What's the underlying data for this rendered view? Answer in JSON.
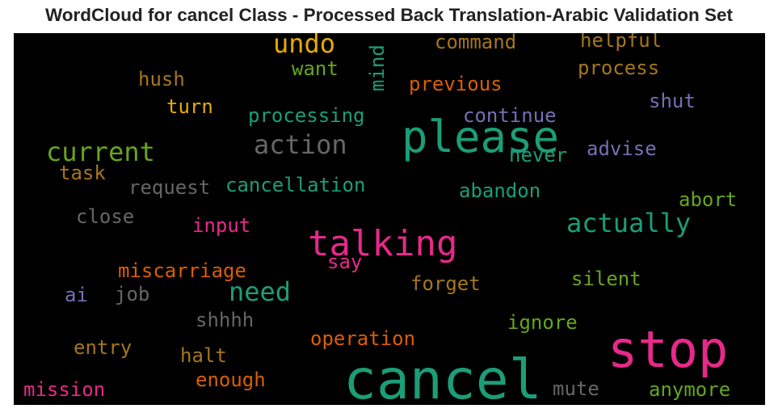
{
  "chart_data": {
    "type": "wordcloud",
    "title": "WordCloud for cancel Class - Processed Back Translation-Arabic Validation Set",
    "background": "#000000",
    "palette": {
      "teal": "#1b9e77",
      "orange": "#d95f02",
      "purple": "#7570b3",
      "pink": "#e7298a",
      "green": "#66a61e",
      "gold": "#e6ab02",
      "tan": "#a6761d",
      "gray": "#666666"
    },
    "words": [
      {
        "text": "cancel",
        "color": "#1b9e77",
        "orientation": "horizontal"
      },
      {
        "text": "stop",
        "color": "#e7298a",
        "orientation": "horizontal"
      },
      {
        "text": "please",
        "color": "#1b9e77",
        "orientation": "horizontal"
      },
      {
        "text": "talking",
        "color": "#e7298a",
        "orientation": "horizontal"
      },
      {
        "text": "action",
        "color": "#666666",
        "orientation": "horizontal"
      },
      {
        "text": "actually",
        "color": "#1b9e77",
        "orientation": "horizontal"
      },
      {
        "text": "current",
        "color": "#66a61e",
        "orientation": "horizontal"
      },
      {
        "text": "need",
        "color": "#1b9e77",
        "orientation": "horizontal"
      },
      {
        "text": "undo",
        "color": "#e6ab02",
        "orientation": "horizontal"
      },
      {
        "text": "processing",
        "color": "#1b9e77",
        "orientation": "horizontal"
      },
      {
        "text": "cancellation",
        "color": "#1b9e77",
        "orientation": "horizontal"
      },
      {
        "text": "miscarriage",
        "color": "#d95f02",
        "orientation": "horizontal"
      },
      {
        "text": "operation",
        "color": "#d95f02",
        "orientation": "horizontal"
      },
      {
        "text": "command",
        "color": "#a6761d",
        "orientation": "horizontal"
      },
      {
        "text": "helpful",
        "color": "#a6761d",
        "orientation": "horizontal"
      },
      {
        "text": "process",
        "color": "#a6761d",
        "orientation": "horizontal"
      },
      {
        "text": "previous",
        "color": "#d95f02",
        "orientation": "horizontal"
      },
      {
        "text": "continue",
        "color": "#7570b3",
        "orientation": "horizontal"
      },
      {
        "text": "never",
        "color": "#1b9e77",
        "orientation": "horizontal"
      },
      {
        "text": "advise",
        "color": "#7570b3",
        "orientation": "horizontal"
      },
      {
        "text": "shut",
        "color": "#7570b3",
        "orientation": "horizontal"
      },
      {
        "text": "want",
        "color": "#66a61e",
        "orientation": "horizontal"
      },
      {
        "text": "mind",
        "color": "#1b9e77",
        "orientation": "vertical"
      },
      {
        "text": "hush",
        "color": "#a6761d",
        "orientation": "horizontal"
      },
      {
        "text": "turn",
        "color": "#e6ab02",
        "orientation": "horizontal"
      },
      {
        "text": "task",
        "color": "#a6761d",
        "orientation": "horizontal"
      },
      {
        "text": "request",
        "color": "#666666",
        "orientation": "horizontal"
      },
      {
        "text": "abandon",
        "color": "#1b9e77",
        "orientation": "horizontal"
      },
      {
        "text": "abort",
        "color": "#66a61e",
        "orientation": "horizontal"
      },
      {
        "text": "close",
        "color": "#666666",
        "orientation": "horizontal"
      },
      {
        "text": "input",
        "color": "#e7298a",
        "orientation": "horizontal"
      },
      {
        "text": "say",
        "color": "#e7298a",
        "orientation": "horizontal"
      },
      {
        "text": "forget",
        "color": "#a6761d",
        "orientation": "horizontal"
      },
      {
        "text": "silent",
        "color": "#66a61e",
        "orientation": "horizontal"
      },
      {
        "text": "ai",
        "color": "#7570b3",
        "orientation": "horizontal"
      },
      {
        "text": "job",
        "color": "#666666",
        "orientation": "horizontal"
      },
      {
        "text": "shhhh",
        "color": "#666666",
        "orientation": "horizontal"
      },
      {
        "text": "ignore",
        "color": "#66a61e",
        "orientation": "horizontal"
      },
      {
        "text": "entry",
        "color": "#a6761d",
        "orientation": "horizontal"
      },
      {
        "text": "halt",
        "color": "#a6761d",
        "orientation": "horizontal"
      },
      {
        "text": "enough",
        "color": "#d95f02",
        "orientation": "horizontal"
      },
      {
        "text": "mission",
        "color": "#e7298a",
        "orientation": "horizontal"
      },
      {
        "text": "mute",
        "color": "#666666",
        "orientation": "horizontal"
      },
      {
        "text": "anymore",
        "color": "#66a61e",
        "orientation": "horizontal"
      }
    ]
  }
}
